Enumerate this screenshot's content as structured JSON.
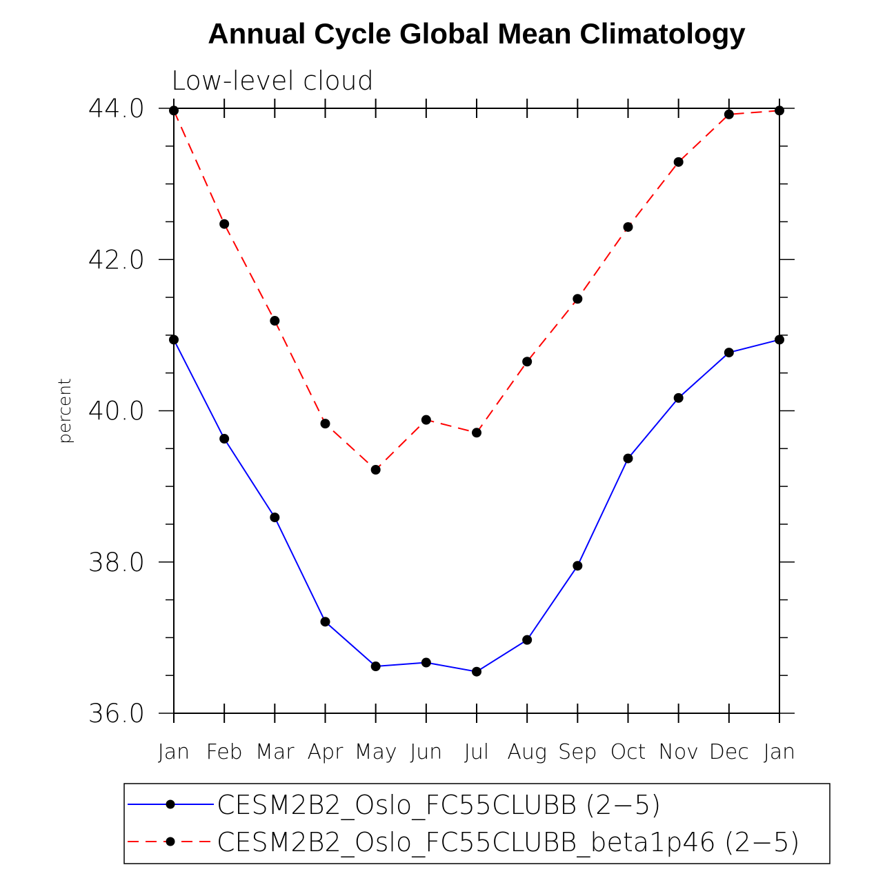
{
  "chart_data": {
    "type": "line",
    "title": "Annual Cycle Global Mean Climatology",
    "subtitle": "Low-level cloud",
    "xlabel": "",
    "ylabel": "percent",
    "categories": [
      "Jan",
      "Feb",
      "Mar",
      "Apr",
      "May",
      "Jun",
      "Jul",
      "Aug",
      "Sep",
      "Oct",
      "Nov",
      "Dec",
      "Jan"
    ],
    "ylim": [
      36.0,
      44.0
    ],
    "yticks": [
      36.0,
      38.0,
      40.0,
      42.0,
      44.0
    ],
    "ytick_labels": [
      "36.0",
      "38.0",
      "40.0",
      "42.0",
      "44.0"
    ],
    "y_minor_step": 0.5,
    "grid": false,
    "legend_position": "bottom",
    "series": [
      {
        "name": "CESM2B2_Oslo_FC55CLUBB (2−5)",
        "color": "#0000ff",
        "line_style": "solid",
        "marker": "filled-circle",
        "marker_color": "#000000",
        "values": [
          40.94,
          39.63,
          38.59,
          37.21,
          36.62,
          36.67,
          36.55,
          36.97,
          37.95,
          39.37,
          40.17,
          40.77,
          40.94
        ]
      },
      {
        "name": "CESM2B2_Oslo_FC55CLUBB_beta1p46 (2−5)",
        "color": "#ff0000",
        "line_style": "dashed",
        "marker": "filled-circle",
        "marker_color": "#000000",
        "values": [
          43.97,
          42.47,
          41.19,
          39.83,
          39.22,
          39.88,
          39.71,
          40.65,
          41.48,
          42.43,
          43.29,
          43.92,
          43.97
        ]
      }
    ]
  }
}
